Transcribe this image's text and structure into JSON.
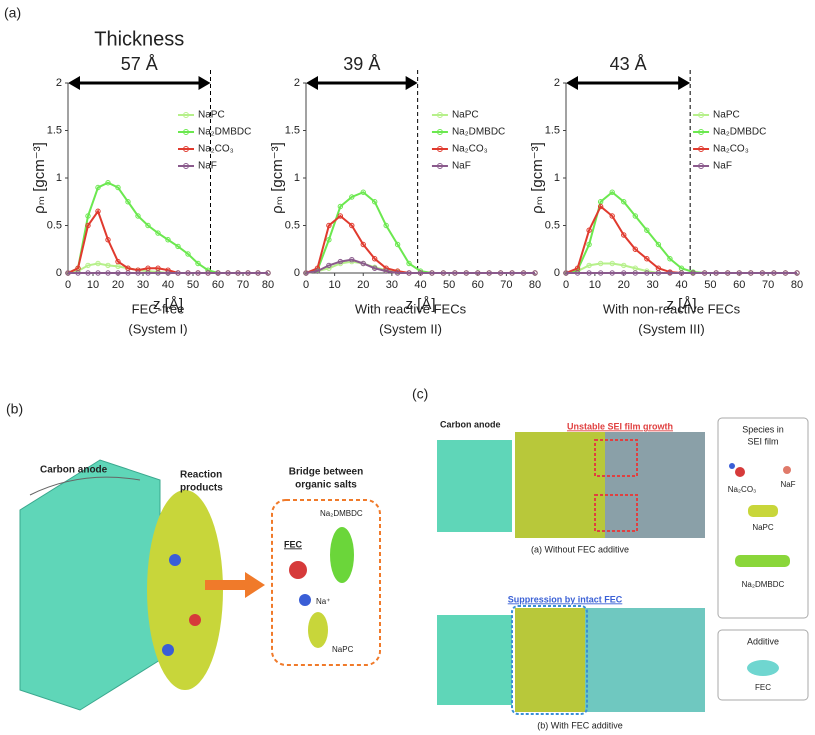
{
  "chart_data": [
    {
      "type": "line",
      "panel": "(a)",
      "caption": "FEC-free",
      "subcaption": "(System I)",
      "top_label": "Thickness",
      "thickness": 57,
      "thickness_label": "57 Å",
      "xlabel": "z [Å]",
      "ylabel": "ρₘ [gcm⁻³]",
      "xlim": [
        0,
        80
      ],
      "ylim": [
        0,
        2
      ],
      "xticks": [
        0,
        10,
        20,
        30,
        40,
        50,
        60,
        70,
        80
      ],
      "yticks": [
        0,
        0.5,
        1,
        1.5,
        2
      ],
      "x": [
        0,
        4,
        8,
        12,
        16,
        20,
        24,
        28,
        32,
        36,
        40,
        44,
        48,
        52,
        56,
        60,
        64,
        68,
        72,
        76,
        80
      ],
      "series": [
        {
          "name": "NaPC",
          "color": "#b6f08a",
          "values": [
            0,
            0.02,
            0.08,
            0.1,
            0.08,
            0.07,
            0.05,
            0.03,
            0.02,
            0.01,
            0,
            0,
            0,
            0,
            0,
            0,
            0,
            0,
            0,
            0,
            0
          ]
        },
        {
          "name": "Na₂DMBDC",
          "color": "#6be84f",
          "values": [
            0,
            0.05,
            0.6,
            0.9,
            0.95,
            0.9,
            0.75,
            0.6,
            0.5,
            0.42,
            0.35,
            0.28,
            0.2,
            0.1,
            0.03,
            0,
            0,
            0,
            0,
            0,
            0
          ]
        },
        {
          "name": "Na₂CO₃",
          "color": "#e03a2e",
          "values": [
            0,
            0.05,
            0.5,
            0.65,
            0.35,
            0.12,
            0.05,
            0.03,
            0.05,
            0.05,
            0.03,
            0,
            0,
            0,
            0,
            0,
            0,
            0,
            0,
            0,
            0
          ]
        },
        {
          "name": "NaF",
          "color": "#8a5a8c",
          "values": [
            0,
            0,
            0,
            0,
            0,
            0,
            0,
            0,
            0,
            0,
            0,
            0,
            0,
            0,
            0,
            0,
            0,
            0,
            0,
            0,
            0
          ]
        }
      ]
    },
    {
      "type": "line",
      "caption": "With reactive FECs",
      "subcaption": "(System II)",
      "thickness": 39,
      "thickness_label": "39 Å",
      "xlabel": "z [Å]",
      "ylabel": "ρₘ [gcm⁻³]",
      "xlim": [
        0,
        80
      ],
      "ylim": [
        0,
        2
      ],
      "xticks": [
        0,
        10,
        20,
        30,
        40,
        50,
        60,
        70,
        80
      ],
      "yticks": [
        0,
        0.5,
        1,
        1.5,
        2
      ],
      "x": [
        0,
        4,
        8,
        12,
        16,
        20,
        24,
        28,
        32,
        36,
        40,
        44,
        48,
        52,
        56,
        60,
        64,
        68,
        72,
        76,
        80
      ],
      "series": [
        {
          "name": "NaPC",
          "color": "#b6f08a",
          "values": [
            0,
            0.02,
            0.05,
            0.1,
            0.12,
            0.1,
            0.06,
            0.03,
            0.01,
            0,
            0,
            0,
            0,
            0,
            0,
            0,
            0,
            0,
            0,
            0,
            0
          ]
        },
        {
          "name": "Na₂DMBDC",
          "color": "#6be84f",
          "values": [
            0,
            0.03,
            0.35,
            0.7,
            0.8,
            0.85,
            0.75,
            0.5,
            0.3,
            0.1,
            0.02,
            0,
            0,
            0,
            0,
            0,
            0,
            0,
            0,
            0,
            0
          ]
        },
        {
          "name": "Na₂CO₃",
          "color": "#e03a2e",
          "values": [
            0,
            0.05,
            0.5,
            0.6,
            0.5,
            0.3,
            0.15,
            0.05,
            0.02,
            0,
            0,
            0,
            0,
            0,
            0,
            0,
            0,
            0,
            0,
            0,
            0
          ]
        },
        {
          "name": "NaF",
          "color": "#8a5a8c",
          "values": [
            0,
            0.02,
            0.08,
            0.12,
            0.14,
            0.1,
            0.05,
            0.02,
            0,
            0,
            0,
            0,
            0,
            0,
            0,
            0,
            0,
            0,
            0,
            0,
            0
          ]
        }
      ]
    },
    {
      "type": "line",
      "caption": "With non-reactive FECs",
      "subcaption": "(System III)",
      "thickness": 43,
      "thickness_label": "43 Å",
      "xlabel": "z [Å]",
      "ylabel": "ρₘ [gcm⁻³]",
      "xlim": [
        0,
        80
      ],
      "ylim": [
        0,
        2
      ],
      "xticks": [
        0,
        10,
        20,
        30,
        40,
        50,
        60,
        70,
        80
      ],
      "yticks": [
        0,
        0.5,
        1,
        1.5,
        2
      ],
      "x": [
        0,
        4,
        8,
        12,
        16,
        20,
        24,
        28,
        32,
        36,
        40,
        44,
        48,
        52,
        56,
        60,
        64,
        68,
        72,
        76,
        80
      ],
      "series": [
        {
          "name": "NaPC",
          "color": "#b6f08a",
          "values": [
            0,
            0.02,
            0.08,
            0.1,
            0.1,
            0.08,
            0.05,
            0.02,
            0,
            0,
            0,
            0,
            0,
            0,
            0,
            0,
            0,
            0,
            0,
            0,
            0
          ]
        },
        {
          "name": "Na₂DMBDC",
          "color": "#6be84f",
          "values": [
            0,
            0.03,
            0.3,
            0.75,
            0.85,
            0.75,
            0.6,
            0.45,
            0.3,
            0.15,
            0.05,
            0.01,
            0,
            0,
            0,
            0,
            0,
            0,
            0,
            0,
            0
          ]
        },
        {
          "name": "Na₂CO₃",
          "color": "#e03a2e",
          "values": [
            0,
            0.05,
            0.45,
            0.7,
            0.6,
            0.4,
            0.25,
            0.15,
            0.05,
            0.01,
            0,
            0,
            0,
            0,
            0,
            0,
            0,
            0,
            0,
            0,
            0
          ]
        },
        {
          "name": "NaF",
          "color": "#8a5a8c",
          "values": [
            0,
            0,
            0,
            0,
            0,
            0,
            0,
            0,
            0,
            0,
            0,
            0,
            0,
            0,
            0,
            0,
            0,
            0,
            0,
            0,
            0
          ]
        }
      ]
    }
  ],
  "panel_b": {
    "label": "(b)",
    "carbon_anode": "Carbon anode",
    "reaction_products": [
      "Reaction",
      "products"
    ],
    "bridge": [
      "Bridge between",
      "organic salts"
    ],
    "na2dmbdc": "Na₂DMBDC",
    "fec": "FEC",
    "na_plus": "Na⁺",
    "napc": "NaPC"
  },
  "panel_c": {
    "label": "(c)",
    "carbon_anode": "Carbon anode",
    "unstable": "Unstable SEI film growth",
    "caption_a": "(a) Without FEC additive",
    "suppression": "Suppression by intact FEC",
    "caption_b": "(b) With FEC additive",
    "species_title": [
      "Species in",
      "SEI film"
    ],
    "na2co3": "Na₂CO₃",
    "naf": "NaF",
    "napc": "NaPC",
    "na2dmbdc": "Na₂DMBDC",
    "additive": "Additive",
    "fec": "FEC"
  }
}
